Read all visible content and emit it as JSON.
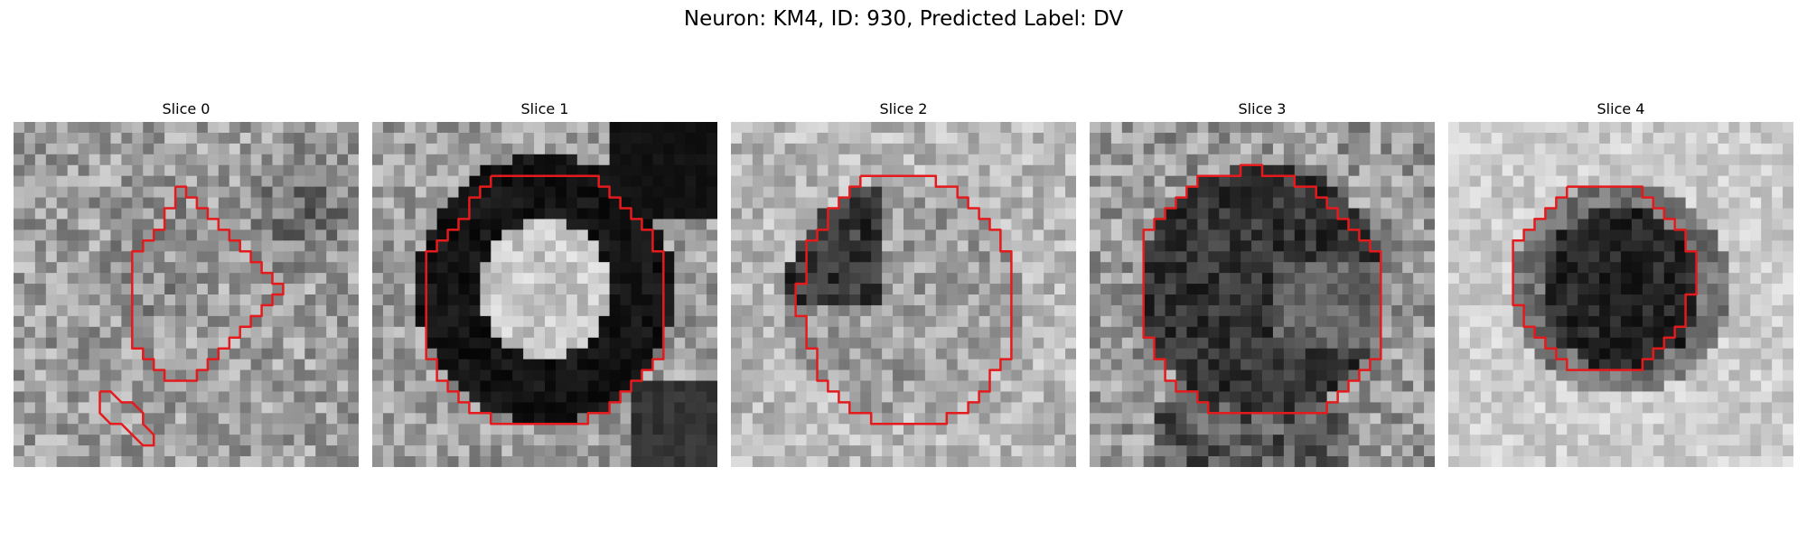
{
  "figure": {
    "title": "Neuron: KM4, ID: 930, Predicted Label: DV"
  },
  "colors": {
    "contour": "#e41a1c",
    "background": "#ffffff"
  },
  "panels": [
    {
      "title": "Slice 0",
      "pattern": "noise-faint-blob"
    },
    {
      "title": "Slice 1",
      "pattern": "bright-core-dark-ring"
    },
    {
      "title": "Slice 2",
      "pattern": "mixed-cell"
    },
    {
      "title": "Slice 3",
      "pattern": "dark-cell"
    },
    {
      "title": "Slice 4",
      "pattern": "dark-cell-small"
    }
  ]
}
